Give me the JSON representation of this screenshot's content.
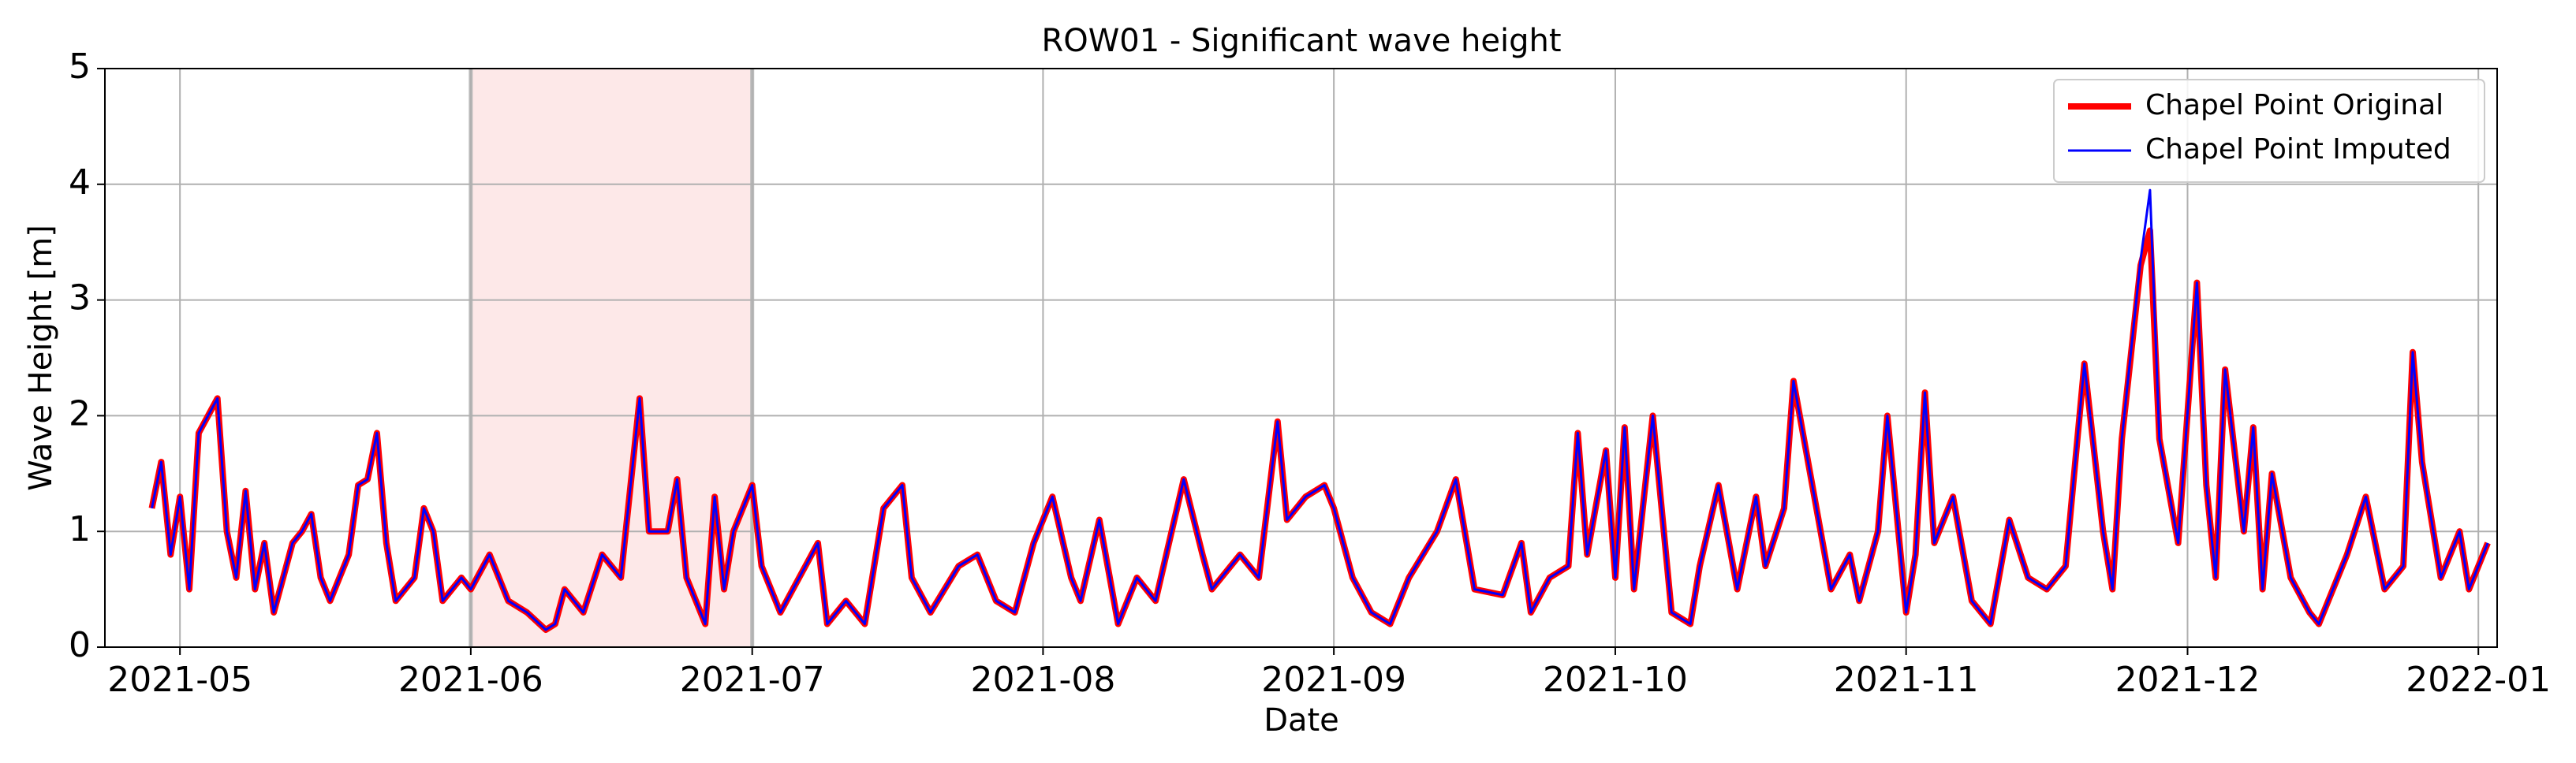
{
  "chart_data": {
    "type": "line",
    "title": "ROW01 - Significant wave height",
    "xlabel": "Date",
    "ylabel": "Wave Height [m]",
    "x": [
      "2021-04-28",
      "2021-04-29",
      "2021-04-30",
      "2021-05-01",
      "2021-05-02",
      "2021-05-03",
      "2021-05-05",
      "2021-05-06",
      "2021-05-07",
      "2021-05-08",
      "2021-05-09",
      "2021-05-10",
      "2021-05-11",
      "2021-05-13",
      "2021-05-14",
      "2021-05-15",
      "2021-05-16",
      "2021-05-17",
      "2021-05-19",
      "2021-05-20",
      "2021-05-21",
      "2021-05-22",
      "2021-05-23",
      "2021-05-24",
      "2021-05-26",
      "2021-05-27",
      "2021-05-28",
      "2021-05-29",
      "2021-05-31",
      "2021-06-01",
      "2021-06-03",
      "2021-06-05",
      "2021-06-07",
      "2021-06-09",
      "2021-06-10",
      "2021-06-11",
      "2021-06-13",
      "2021-06-15",
      "2021-06-17",
      "2021-06-19",
      "2021-06-20",
      "2021-06-22",
      "2021-06-23",
      "2021-06-24",
      "2021-06-26",
      "2021-06-27",
      "2021-06-28",
      "2021-06-29",
      "2021-07-01",
      "2021-07-02",
      "2021-07-04",
      "2021-07-06",
      "2021-07-08",
      "2021-07-09",
      "2021-07-11",
      "2021-07-13",
      "2021-07-15",
      "2021-07-17",
      "2021-07-18",
      "2021-07-20",
      "2021-07-23",
      "2021-07-25",
      "2021-07-27",
      "2021-07-29",
      "2021-07-31",
      "2021-08-02",
      "2021-08-04",
      "2021-08-05",
      "2021-08-07",
      "2021-08-09",
      "2021-08-11",
      "2021-08-13",
      "2021-08-16",
      "2021-08-18",
      "2021-08-19",
      "2021-08-22",
      "2021-08-24",
      "2021-08-26",
      "2021-08-27",
      "2021-08-29",
      "2021-08-31",
      "2021-09-01",
      "2021-09-03",
      "2021-09-05",
      "2021-09-07",
      "2021-09-09",
      "2021-09-12",
      "2021-09-14",
      "2021-09-16",
      "2021-09-19",
      "2021-09-21",
      "2021-09-22",
      "2021-09-24",
      "2021-09-26",
      "2021-09-27",
      "2021-09-28",
      "2021-09-30",
      "2021-10-01",
      "2021-10-02",
      "2021-10-03",
      "2021-10-05",
      "2021-10-07",
      "2021-10-09",
      "2021-10-10",
      "2021-10-12",
      "2021-10-14",
      "2021-10-16",
      "2021-10-17",
      "2021-10-19",
      "2021-10-20",
      "2021-10-22",
      "2021-10-24",
      "2021-10-26",
      "2021-10-27",
      "2021-10-29",
      "2021-10-30",
      "2021-11-01",
      "2021-11-02",
      "2021-11-03",
      "2021-11-04",
      "2021-11-06",
      "2021-11-08",
      "2021-11-10",
      "2021-11-12",
      "2021-11-14",
      "2021-11-16",
      "2021-11-18",
      "2021-11-20",
      "2021-11-22",
      "2021-11-23",
      "2021-11-24",
      "2021-11-26",
      "2021-11-27",
      "2021-11-28",
      "2021-11-30",
      "2021-12-02",
      "2021-12-03",
      "2021-12-04",
      "2021-12-05",
      "2021-12-07",
      "2021-12-08",
      "2021-12-09",
      "2021-12-10",
      "2021-12-12",
      "2021-12-14",
      "2021-12-15",
      "2021-12-18",
      "2021-12-20",
      "2021-12-22",
      "2021-12-24",
      "2021-12-25",
      "2021-12-26",
      "2021-12-28",
      "2021-12-30",
      "2021-12-31",
      "2022-01-02"
    ],
    "series": [
      {
        "name": "Chapel Point Original",
        "color": "#ff0000",
        "width": 8,
        "values": [
          1.2,
          1.6,
          0.8,
          1.3,
          0.5,
          1.85,
          2.15,
          1.0,
          0.6,
          1.35,
          0.5,
          0.9,
          0.3,
          0.9,
          1.0,
          1.15,
          0.6,
          0.4,
          0.8,
          1.4,
          1.45,
          1.85,
          0.9,
          0.4,
          0.6,
          1.2,
          1.0,
          0.4,
          0.6,
          0.5,
          0.8,
          0.4,
          0.3,
          0.15,
          0.2,
          0.5,
          0.3,
          0.8,
          0.6,
          2.15,
          1.0,
          1.0,
          1.45,
          0.6,
          0.2,
          1.3,
          0.5,
          1.0,
          1.4,
          0.7,
          0.3,
          0.6,
          0.9,
          0.2,
          0.4,
          0.2,
          1.2,
          1.4,
          0.6,
          0.3,
          0.7,
          0.8,
          0.4,
          0.3,
          0.9,
          1.3,
          0.6,
          0.4,
          1.1,
          0.2,
          0.6,
          0.4,
          1.45,
          0.8,
          0.5,
          0.8,
          0.6,
          1.95,
          1.1,
          1.3,
          1.4,
          1.2,
          0.6,
          0.3,
          0.2,
          0.6,
          1.0,
          1.45,
          0.5,
          0.45,
          0.9,
          0.3,
          0.6,
          0.7,
          1.85,
          0.8,
          1.7,
          0.6,
          1.9,
          0.5,
          2.0,
          0.3,
          0.2,
          0.7,
          1.4,
          0.5,
          1.3,
          0.7,
          1.2,
          2.3,
          1.4,
          0.5,
          0.8,
          0.4,
          1.0,
          2.0,
          0.3,
          0.8,
          2.2,
          0.9,
          1.3,
          0.4,
          0.2,
          1.1,
          0.6,
          0.5,
          0.7,
          2.45,
          1.0,
          0.5,
          1.8,
          3.3,
          3.6,
          1.8,
          0.9,
          3.15,
          1.4,
          0.6,
          2.4,
          1.0,
          1.9,
          0.5,
          1.5,
          0.6,
          0.3,
          0.2,
          0.8,
          1.3,
          0.5,
          0.7,
          2.55,
          1.6,
          0.6,
          1.0,
          0.5,
          0.9
        ]
      },
      {
        "name": "Chapel Point Imputed",
        "color": "#0000ff",
        "width": 3,
        "values": [
          1.2,
          1.6,
          0.8,
          1.3,
          0.5,
          1.85,
          2.15,
          1.0,
          0.6,
          1.35,
          0.5,
          0.9,
          0.3,
          0.9,
          1.0,
          1.15,
          0.6,
          0.4,
          0.8,
          1.4,
          1.45,
          1.85,
          0.9,
          0.4,
          0.6,
          1.2,
          1.0,
          0.4,
          0.6,
          0.5,
          0.8,
          0.4,
          0.3,
          0.15,
          0.2,
          0.5,
          0.3,
          0.8,
          0.6,
          2.15,
          1.0,
          1.0,
          1.45,
          0.6,
          0.2,
          1.3,
          0.5,
          1.0,
          1.4,
          0.7,
          0.3,
          0.6,
          0.9,
          0.2,
          0.4,
          0.2,
          1.2,
          1.4,
          0.6,
          0.3,
          0.7,
          0.8,
          0.4,
          0.3,
          0.9,
          1.3,
          0.6,
          0.4,
          1.1,
          0.2,
          0.6,
          0.4,
          1.45,
          0.8,
          0.5,
          0.8,
          0.6,
          1.95,
          1.1,
          1.3,
          1.4,
          1.2,
          0.6,
          0.3,
          0.2,
          0.6,
          1.0,
          1.45,
          0.5,
          0.45,
          0.9,
          0.3,
          0.6,
          0.7,
          1.85,
          0.8,
          1.7,
          0.6,
          1.9,
          0.5,
          2.0,
          0.3,
          0.2,
          0.7,
          1.4,
          0.5,
          1.3,
          0.7,
          1.2,
          2.3,
          1.4,
          0.5,
          0.8,
          0.4,
          1.0,
          2.0,
          0.3,
          0.8,
          2.2,
          0.9,
          1.3,
          0.4,
          0.2,
          1.1,
          0.6,
          0.5,
          0.7,
          2.45,
          1.0,
          0.5,
          1.8,
          3.35,
          3.95,
          1.8,
          0.9,
          3.15,
          1.4,
          0.6,
          2.4,
          1.0,
          1.9,
          0.5,
          1.5,
          0.6,
          0.3,
          0.2,
          0.8,
          1.3,
          0.5,
          0.7,
          2.55,
          1.6,
          0.6,
          1.0,
          0.5,
          0.9
        ]
      }
    ],
    "highlight": {
      "x": [
        "2021-06-01",
        "2021-07-01"
      ],
      "color": "#fde8e8",
      "edge_color": "#bbbbbb"
    },
    "xlim": [
      "2021-04-23",
      "2022-01-03"
    ],
    "xticks": [
      {
        "value": "2021-05-01",
        "label": "2021-05"
      },
      {
        "value": "2021-06-01",
        "label": "2021-06"
      },
      {
        "value": "2021-07-01",
        "label": "2021-07"
      },
      {
        "value": "2021-08-01",
        "label": "2021-08"
      },
      {
        "value": "2021-09-01",
        "label": "2021-09"
      },
      {
        "value": "2021-10-01",
        "label": "2021-10"
      },
      {
        "value": "2021-11-01",
        "label": "2021-11"
      },
      {
        "value": "2021-12-01",
        "label": "2021-12"
      },
      {
        "value": "2022-01-01",
        "label": "2022-01"
      }
    ],
    "ylim": [
      0,
      5
    ],
    "yticks": [
      0,
      1,
      2,
      3,
      4,
      5
    ],
    "grid": true,
    "legend": "upper right"
  }
}
